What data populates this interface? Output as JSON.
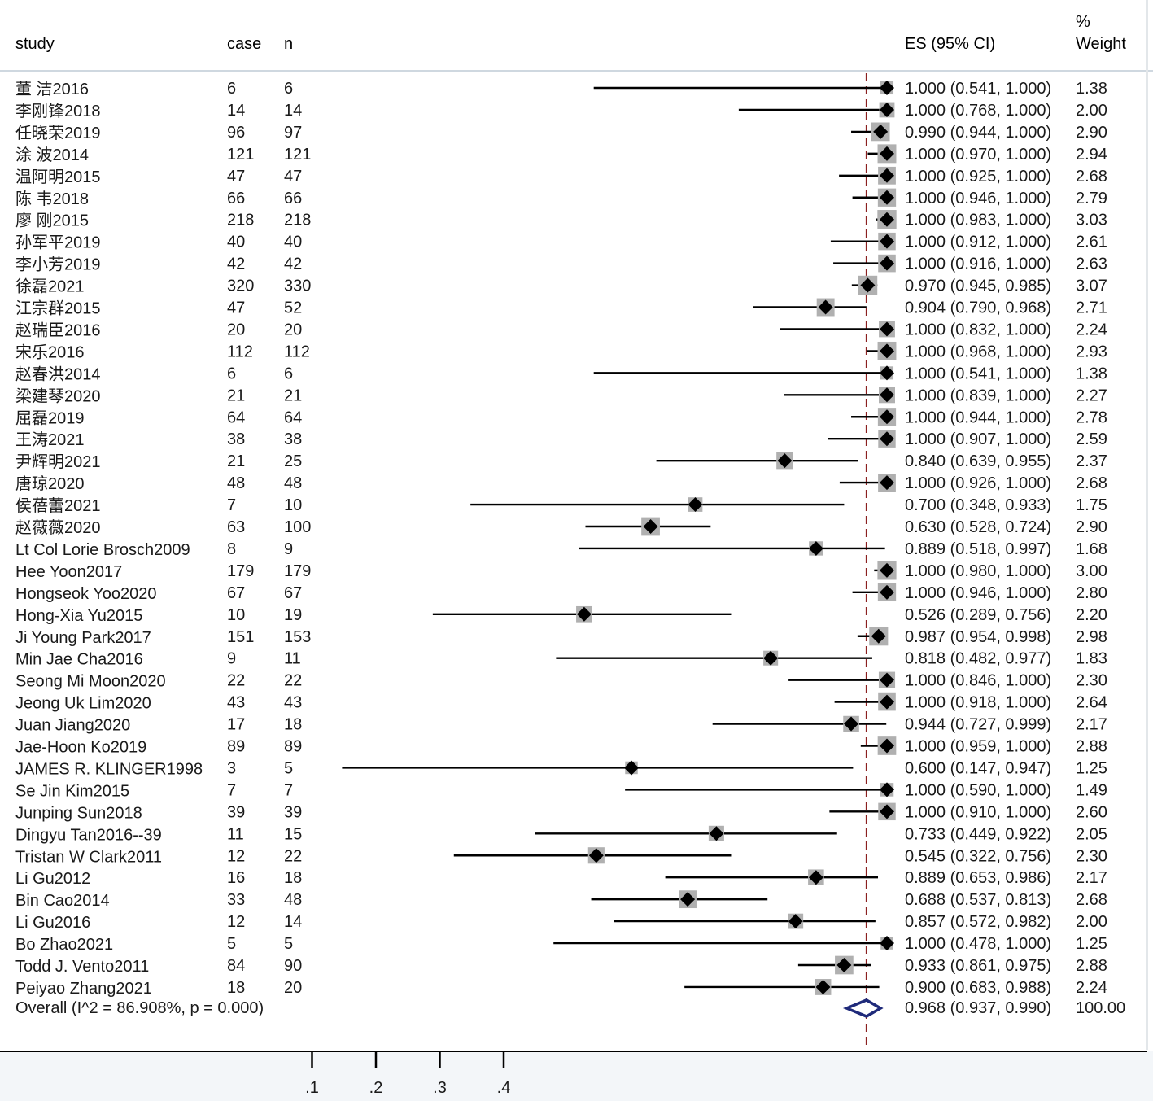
{
  "chart_data": {
    "type": "forest",
    "headers": {
      "study": "study",
      "case": "case",
      "n": "n",
      "es": "ES (95% CI)",
      "weight_line1": "%",
      "weight_line2": "Weight"
    },
    "x_ticks": [
      ".1",
      ".2",
      ".3",
      ".4"
    ],
    "x_tick_values": [
      0.1,
      0.2,
      0.3,
      0.4
    ],
    "reference_line": 0.968,
    "colors": {
      "marker": "#000000",
      "weight_box": "#b0b0b0",
      "overall_diamond": "#1f2a7a",
      "reference_line": "#8b2020",
      "header_rule": "#cfd8e0"
    },
    "studies": [
      {
        "study": "董 洁2016",
        "case": "6",
        "n": "6",
        "es": 1.0,
        "lo": 0.541,
        "hi": 1.0,
        "es_text": "1.000 (0.541, 1.000)",
        "weight": "1.38"
      },
      {
        "study": "李刚锋2018",
        "case": "14",
        "n": "14",
        "es": 1.0,
        "lo": 0.768,
        "hi": 1.0,
        "es_text": "1.000 (0.768, 1.000)",
        "weight": "2.00"
      },
      {
        "study": "任晓荣2019",
        "case": "96",
        "n": "97",
        "es": 0.99,
        "lo": 0.944,
        "hi": 1.0,
        "es_text": "0.990 (0.944, 1.000)",
        "weight": "2.90"
      },
      {
        "study": "涂 波2014",
        "case": "121",
        "n": "121",
        "es": 1.0,
        "lo": 0.97,
        "hi": 1.0,
        "es_text": "1.000 (0.970, 1.000)",
        "weight": "2.94"
      },
      {
        "study": "温阿明2015",
        "case": "47",
        "n": "47",
        "es": 1.0,
        "lo": 0.925,
        "hi": 1.0,
        "es_text": "1.000 (0.925, 1.000)",
        "weight": "2.68"
      },
      {
        "study": "陈 韦2018",
        "case": "66",
        "n": "66",
        "es": 1.0,
        "lo": 0.946,
        "hi": 1.0,
        "es_text": "1.000 (0.946, 1.000)",
        "weight": "2.79"
      },
      {
        "study": "廖 刚2015",
        "case": "218",
        "n": "218",
        "es": 1.0,
        "lo": 0.983,
        "hi": 1.0,
        "es_text": "1.000 (0.983, 1.000)",
        "weight": "3.03"
      },
      {
        "study": "孙军平2019",
        "case": "40",
        "n": "40",
        "es": 1.0,
        "lo": 0.912,
        "hi": 1.0,
        "es_text": "1.000 (0.912, 1.000)",
        "weight": "2.61"
      },
      {
        "study": "李小芳2019",
        "case": "42",
        "n": "42",
        "es": 1.0,
        "lo": 0.916,
        "hi": 1.0,
        "es_text": "1.000 (0.916, 1.000)",
        "weight": "2.63"
      },
      {
        "study": "徐磊2021",
        "case": "320",
        "n": "330",
        "es": 0.97,
        "lo": 0.945,
        "hi": 0.985,
        "es_text": "0.970 (0.945, 0.985)",
        "weight": "3.07"
      },
      {
        "study": "江宗群2015",
        "case": "47",
        "n": "52",
        "es": 0.904,
        "lo": 0.79,
        "hi": 0.968,
        "es_text": "0.904 (0.790, 0.968)",
        "weight": "2.71"
      },
      {
        "study": "赵瑞臣2016",
        "case": "20",
        "n": "20",
        "es": 1.0,
        "lo": 0.832,
        "hi": 1.0,
        "es_text": "1.000 (0.832, 1.000)",
        "weight": "2.24"
      },
      {
        "study": "宋乐2016",
        "case": "112",
        "n": "112",
        "es": 1.0,
        "lo": 0.968,
        "hi": 1.0,
        "es_text": "1.000 (0.968, 1.000)",
        "weight": "2.93"
      },
      {
        "study": "赵春洪2014",
        "case": "6",
        "n": "6",
        "es": 1.0,
        "lo": 0.541,
        "hi": 1.0,
        "es_text": "1.000 (0.541, 1.000)",
        "weight": "1.38"
      },
      {
        "study": "梁建琴2020",
        "case": "21",
        "n": "21",
        "es": 1.0,
        "lo": 0.839,
        "hi": 1.0,
        "es_text": "1.000 (0.839, 1.000)",
        "weight": "2.27"
      },
      {
        "study": "屈磊2019",
        "case": "64",
        "n": "64",
        "es": 1.0,
        "lo": 0.944,
        "hi": 1.0,
        "es_text": "1.000 (0.944, 1.000)",
        "weight": "2.78"
      },
      {
        "study": "王涛2021",
        "case": "38",
        "n": "38",
        "es": 1.0,
        "lo": 0.907,
        "hi": 1.0,
        "es_text": "1.000 (0.907, 1.000)",
        "weight": "2.59"
      },
      {
        "study": "尹辉明2021",
        "case": "21",
        "n": "25",
        "es": 0.84,
        "lo": 0.639,
        "hi": 0.955,
        "es_text": "0.840 (0.639, 0.955)",
        "weight": "2.37"
      },
      {
        "study": "唐琼2020",
        "case": "48",
        "n": "48",
        "es": 1.0,
        "lo": 0.926,
        "hi": 1.0,
        "es_text": "1.000 (0.926, 1.000)",
        "weight": "2.68"
      },
      {
        "study": "侯蓓蕾2021",
        "case": "7",
        "n": "10",
        "es": 0.7,
        "lo": 0.348,
        "hi": 0.933,
        "es_text": "0.700 (0.348, 0.933)",
        "weight": "1.75"
      },
      {
        "study": "赵薇薇2020",
        "case": "63",
        "n": "100",
        "es": 0.63,
        "lo": 0.528,
        "hi": 0.724,
        "es_text": "0.630 (0.528, 0.724)",
        "weight": "2.90"
      },
      {
        "study": "Lt Col Lorie Brosch2009",
        "case": "8",
        "n": "9",
        "es": 0.889,
        "lo": 0.518,
        "hi": 0.997,
        "es_text": "0.889 (0.518, 0.997)",
        "weight": "1.68"
      },
      {
        "study": "Hee Yoon2017",
        "case": "179",
        "n": "179",
        "es": 1.0,
        "lo": 0.98,
        "hi": 1.0,
        "es_text": "1.000 (0.980, 1.000)",
        "weight": "3.00"
      },
      {
        "study": "Hongseok Yoo2020",
        "case": "67",
        "n": "67",
        "es": 1.0,
        "lo": 0.946,
        "hi": 1.0,
        "es_text": "1.000 (0.946, 1.000)",
        "weight": "2.80"
      },
      {
        "study": "Hong-Xia Yu2015",
        "case": "10",
        "n": "19",
        "es": 0.526,
        "lo": 0.289,
        "hi": 0.756,
        "es_text": "0.526 (0.289, 0.756)",
        "weight": "2.20"
      },
      {
        "study": "Ji Young Park2017",
        "case": "151",
        "n": "153",
        "es": 0.987,
        "lo": 0.954,
        "hi": 0.998,
        "es_text": "0.987 (0.954, 0.998)",
        "weight": "2.98"
      },
      {
        "study": "Min Jae Cha2016",
        "case": "9",
        "n": "11",
        "es": 0.818,
        "lo": 0.482,
        "hi": 0.977,
        "es_text": "0.818 (0.482, 0.977)",
        "weight": "1.83"
      },
      {
        "study": "Seong Mi Moon2020",
        "case": "22",
        "n": "22",
        "es": 1.0,
        "lo": 0.846,
        "hi": 1.0,
        "es_text": "1.000 (0.846, 1.000)",
        "weight": "2.30"
      },
      {
        "study": "Jeong Uk Lim2020",
        "case": "43",
        "n": "43",
        "es": 1.0,
        "lo": 0.918,
        "hi": 1.0,
        "es_text": "1.000 (0.918, 1.000)",
        "weight": "2.64"
      },
      {
        "study": "Juan Jiang2020",
        "case": "17",
        "n": "18",
        "es": 0.944,
        "lo": 0.727,
        "hi": 0.999,
        "es_text": "0.944 (0.727, 0.999)",
        "weight": "2.17"
      },
      {
        "study": "Jae-Hoon Ko2019",
        "case": "89",
        "n": "89",
        "es": 1.0,
        "lo": 0.959,
        "hi": 1.0,
        "es_text": "1.000 (0.959, 1.000)",
        "weight": "2.88"
      },
      {
        "study": "JAMES R. KLINGER1998",
        "case": "3",
        "n": "5",
        "es": 0.6,
        "lo": 0.147,
        "hi": 0.947,
        "es_text": "0.600 (0.147, 0.947)",
        "weight": "1.25"
      },
      {
        "study": "Se Jin Kim2015",
        "case": "7",
        "n": "7",
        "es": 1.0,
        "lo": 0.59,
        "hi": 1.0,
        "es_text": "1.000 (0.590, 1.000)",
        "weight": "1.49"
      },
      {
        "study": "Junping Sun2018",
        "case": "39",
        "n": "39",
        "es": 1.0,
        "lo": 0.91,
        "hi": 1.0,
        "es_text": "1.000 (0.910, 1.000)",
        "weight": "2.60"
      },
      {
        "study": "Dingyu Tan2016--39",
        "case": "11",
        "n": "15",
        "es": 0.733,
        "lo": 0.449,
        "hi": 0.922,
        "es_text": "0.733 (0.449, 0.922)",
        "weight": "2.05"
      },
      {
        "study": "Tristan W Clark2011",
        "case": "12",
        "n": "22",
        "es": 0.545,
        "lo": 0.322,
        "hi": 0.756,
        "es_text": "0.545 (0.322, 0.756)",
        "weight": "2.30"
      },
      {
        "study": "Li Gu2012",
        "case": "16",
        "n": "18",
        "es": 0.889,
        "lo": 0.653,
        "hi": 0.986,
        "es_text": "0.889 (0.653, 0.986)",
        "weight": "2.17"
      },
      {
        "study": "Bin Cao2014",
        "case": "33",
        "n": "48",
        "es": 0.688,
        "lo": 0.537,
        "hi": 0.813,
        "es_text": "0.688 (0.537, 0.813)",
        "weight": "2.68"
      },
      {
        "study": "Li Gu2016",
        "case": "12",
        "n": "14",
        "es": 0.857,
        "lo": 0.572,
        "hi": 0.982,
        "es_text": "0.857 (0.572, 0.982)",
        "weight": "2.00"
      },
      {
        "study": "Bo Zhao2021",
        "case": "5",
        "n": "5",
        "es": 1.0,
        "lo": 0.478,
        "hi": 1.0,
        "es_text": "1.000 (0.478, 1.000)",
        "weight": "1.25"
      },
      {
        "study": "Todd J. Vento2011",
        "case": "84",
        "n": "90",
        "es": 0.933,
        "lo": 0.861,
        "hi": 0.975,
        "es_text": "0.933 (0.861, 0.975)",
        "weight": "2.88"
      },
      {
        "study": "Peiyao Zhang2021",
        "case": "18",
        "n": "20",
        "es": 0.9,
        "lo": 0.683,
        "hi": 0.988,
        "es_text": "0.900 (0.683, 0.988)",
        "weight": "2.24"
      }
    ],
    "overall": {
      "label": "Overall  (I^2 = 86.908%, p = 0.000)",
      "es": 0.968,
      "lo": 0.937,
      "hi": 0.99,
      "es_text": "0.968 (0.937, 0.990)",
      "weight": "100.00"
    }
  }
}
